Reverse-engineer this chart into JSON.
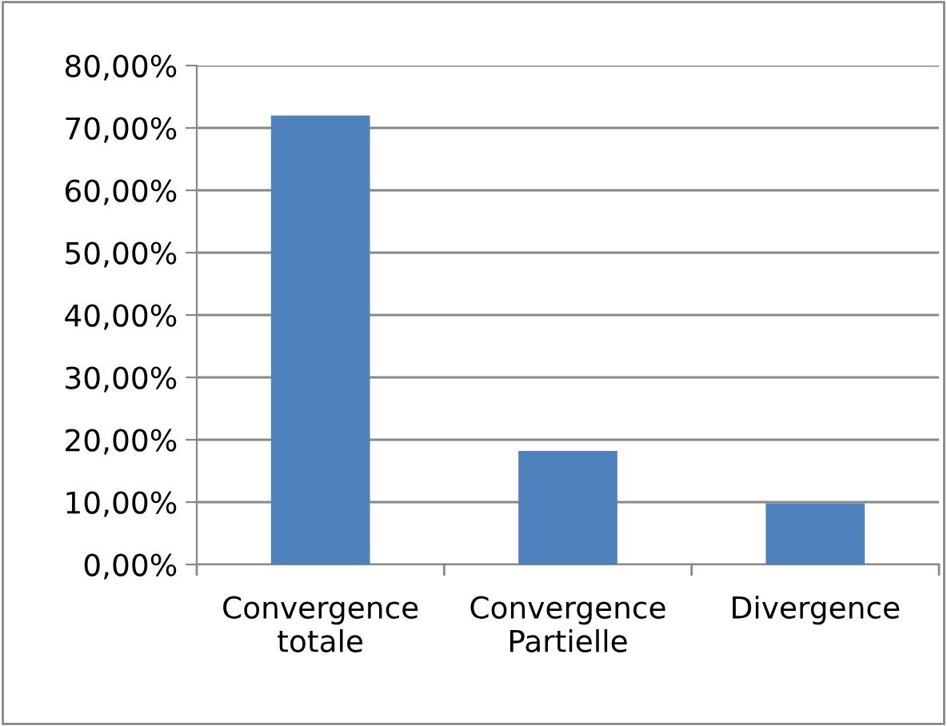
{
  "chart_data": {
    "type": "bar",
    "categories": [
      "Convergence totale",
      "Convergence Partielle",
      "Divergence"
    ],
    "values": [
      72.0,
      18.2,
      9.8
    ],
    "color": "#4f81bd",
    "ylim": [
      0,
      80
    ],
    "yticks": [
      {
        "value": 0,
        "label": "0,00%"
      },
      {
        "value": 10,
        "label": "10,00%"
      },
      {
        "value": 20,
        "label": "20,00%"
      },
      {
        "value": 30,
        "label": "30,00%"
      },
      {
        "value": 40,
        "label": "40,00%"
      },
      {
        "value": 50,
        "label": "50,00%"
      },
      {
        "value": 60,
        "label": "60,00%"
      },
      {
        "value": 70,
        "label": "70,00%"
      },
      {
        "value": 80,
        "label": "80,00%"
      }
    ],
    "grid": "y"
  }
}
